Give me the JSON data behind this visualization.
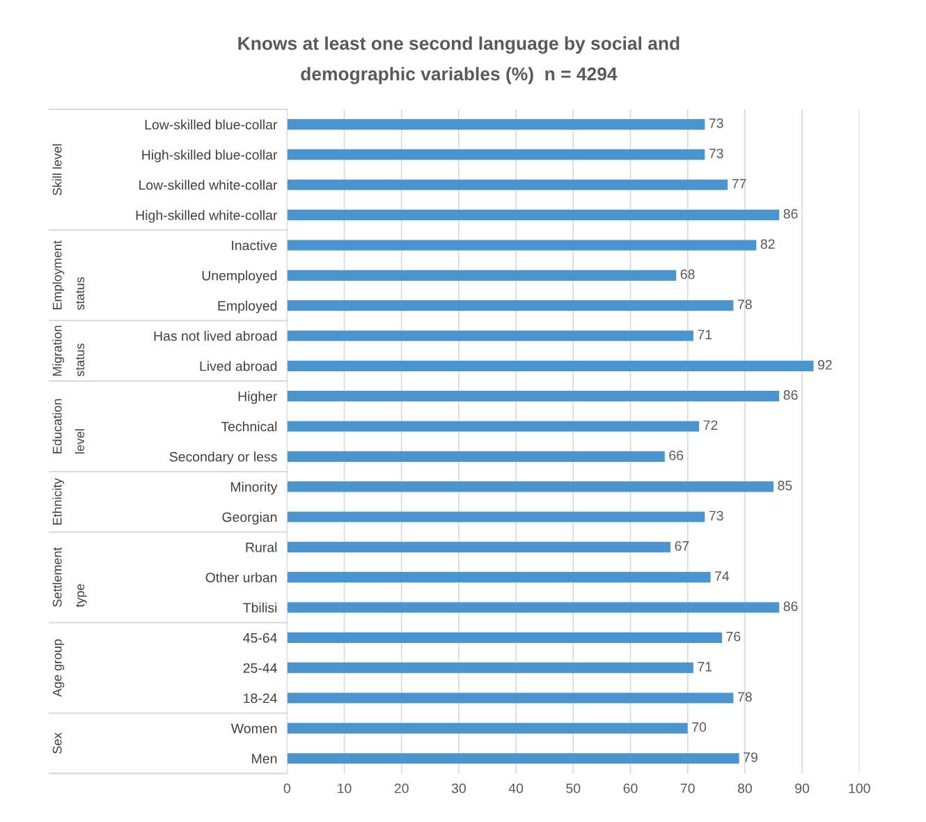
{
  "chart_data": {
    "type": "bar",
    "orientation": "horizontal",
    "title": "Knows at least one second language by social and demographic variables (%)  n = 4294",
    "categories": [
      "Low-skilled blue-collar",
      "High-skilled blue-collar",
      "Low-skilled white-collar",
      "High-skilled white-collar",
      "Inactive",
      "Unemployed",
      "Employed",
      "Has not lived abroad",
      "Lived abroad",
      "Higher",
      "Technical",
      "Secondary or less",
      "Minority",
      "Georgian",
      "Rural",
      "Other urban",
      "Tbilisi",
      "45-64",
      "25-44",
      "18-24",
      "Women",
      "Men"
    ],
    "values": [
      73,
      73,
      77,
      86,
      82,
      68,
      78,
      71,
      92,
      86,
      72,
      66,
      85,
      73,
      67,
      74,
      86,
      76,
      71,
      78,
      70,
      79
    ],
    "color": "#4a94d0",
    "xlim": [
      0,
      100
    ],
    "xticks": [
      0,
      10,
      20,
      30,
      40,
      50,
      60,
      70,
      80,
      90,
      100
    ],
    "grid": "x",
    "data_labels": true,
    "annotations": [
      "Skill level",
      "Employment status",
      "Migration status",
      "Education level",
      "Ethnicity",
      "Settlement type",
      "Age group",
      "Sex"
    ]
  }
}
